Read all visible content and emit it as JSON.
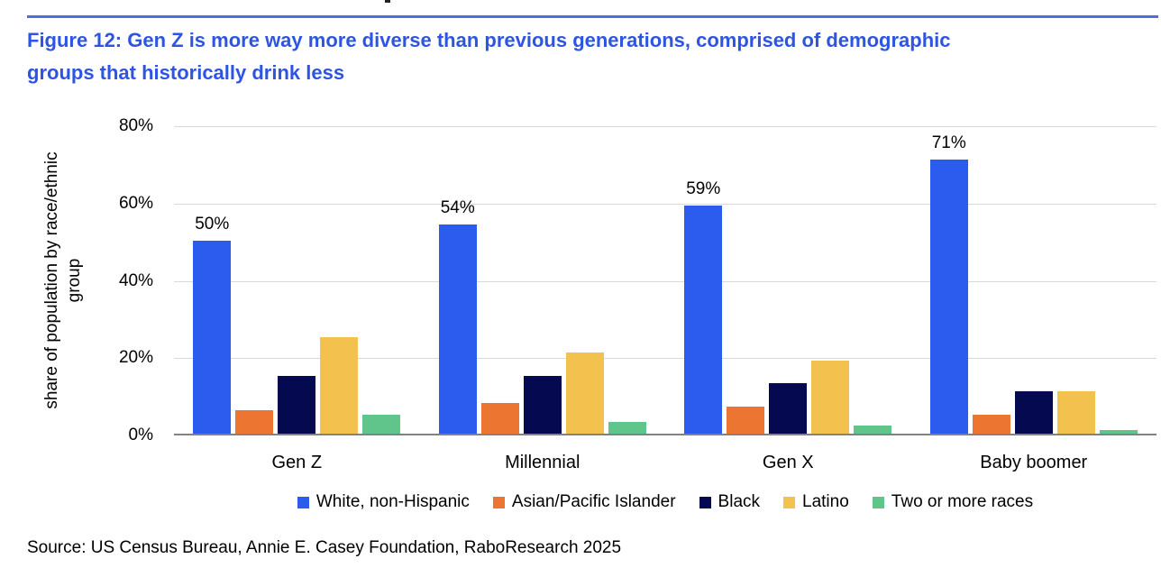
{
  "figure": {
    "title_line1": "Figure 12: Gen Z is more way more diverse than previous generations, comprised of demographic",
    "title_line2": "groups that historically drink less",
    "source": "Source: US Census Bureau, Annie E. Casey Foundation, RaboResearch 2025"
  },
  "colors": {
    "title": "#2e55e2",
    "rule": "#4f6ddb",
    "gridline": "#d9d9d9",
    "axis_baseline": "#828282"
  },
  "chart_data": {
    "type": "bar",
    "title": "",
    "xlabel": "",
    "ylabel_line1": "share of population by race/ethnic",
    "ylabel_line2": "group",
    "ylim": [
      0,
      80
    ],
    "grid": true,
    "legend_position": "bottom",
    "y_ticks": [
      {
        "label": "0%",
        "value": 0
      },
      {
        "label": "20%",
        "value": 20
      },
      {
        "label": "40%",
        "value": 40
      },
      {
        "label": "60%",
        "value": 60
      },
      {
        "label": "80%",
        "value": 80
      }
    ],
    "categories": [
      "Gen Z",
      "Millennial",
      "Gen X",
      "Baby boomer"
    ],
    "series": [
      {
        "name": "White, non-Hispanic",
        "color": "#2b5cee",
        "values": [
          50,
          54,
          59,
          71
        ],
        "labels": [
          "50%",
          "54%",
          "59%",
          "71%"
        ]
      },
      {
        "name": "Asian/Pacific Islander",
        "color": "#eb7531",
        "values": [
          6,
          8,
          7,
          5
        ]
      },
      {
        "name": "Black",
        "color": "#050a50",
        "values": [
          15,
          15,
          13,
          11
        ]
      },
      {
        "name": "Latino",
        "color": "#f3c14e",
        "values": [
          25,
          21,
          19,
          11
        ]
      },
      {
        "name": "Two or more races",
        "color": "#5fc58b",
        "values": [
          5,
          3,
          2,
          1
        ]
      }
    ]
  }
}
